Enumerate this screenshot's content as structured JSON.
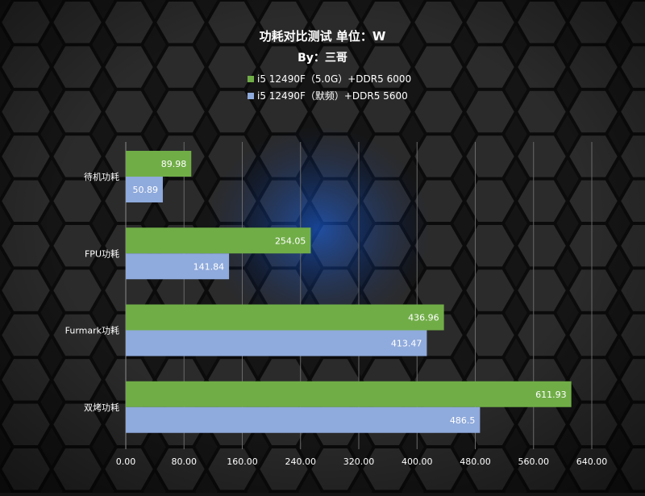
{
  "chart_data": {
    "type": "bar",
    "orientation": "horizontal",
    "title": "功耗对比测试 单位：W",
    "subtitle": "By：三哥",
    "categories": [
      "待机功耗",
      "FPU功耗",
      "Furmark功耗",
      "双烤功耗"
    ],
    "series": [
      {
        "name": "i5 12490F（5.0G）+DDR5 6000",
        "values": [
          89.98,
          254.05,
          436.96,
          611.93
        ],
        "labels": [
          "89.98",
          "254.05",
          "436.96",
          "611.93"
        ],
        "color": "#70ad47"
      },
      {
        "name": "i5 12490F（默频）+DDR5 5600",
        "values": [
          50.89,
          141.84,
          413.47,
          486.5
        ],
        "labels": [
          "50.89",
          "141.84",
          "413.47",
          "486.5"
        ],
        "color": "#8faadc"
      }
    ],
    "xlim": [
      0,
      640
    ],
    "xticks": [
      "0.00",
      "80.00",
      "160.00",
      "240.00",
      "320.00",
      "400.00",
      "480.00",
      "560.00",
      "640.00"
    ],
    "grid": true,
    "legend_position": "top"
  }
}
